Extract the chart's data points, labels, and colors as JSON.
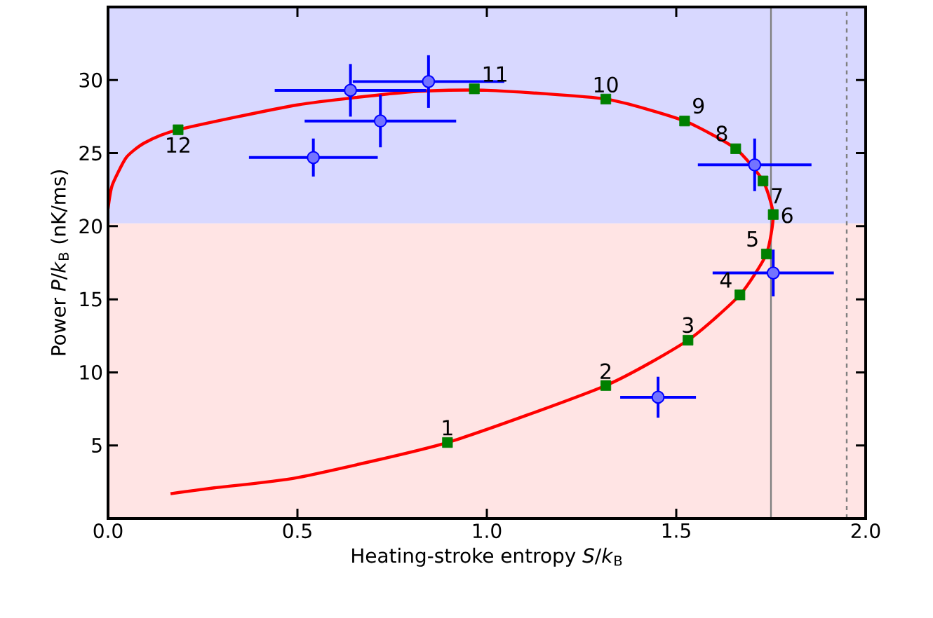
{
  "chart_data": {
    "type": "line",
    "xlabel": "Heating-stroke entropy *S*/*k*$_{B}$",
    "ylabel": "Power *P*/*k*$_{B}$ (nK/ms)",
    "xlim": [
      0,
      2
    ],
    "ylim": [
      0,
      35
    ],
    "xticks": [
      {
        "value": 0,
        "label": "0.0"
      },
      {
        "value": 0.5,
        "label": "0.5"
      },
      {
        "value": 1,
        "label": "1.0"
      },
      {
        "value": 1.5,
        "label": "1.5"
      },
      {
        "value": 2,
        "label": "2.0"
      }
    ],
    "yticks": [
      5,
      10,
      15,
      20,
      25,
      30
    ],
    "bands": [
      {
        "axis": "y",
        "from": 0,
        "to": 20.2,
        "color": "#ffe4e4"
      },
      {
        "axis": "y",
        "from": 20.2,
        "to": 35,
        "color": "#d8d8ff"
      }
    ],
    "ref_lines": [
      {
        "axis": "x",
        "value": 1.75,
        "color": "#808080",
        "line_style": "solid"
      },
      {
        "axis": "x",
        "value": 1.95,
        "color": "#808080",
        "line_style": "dashed"
      }
    ],
    "series": [
      {
        "color": "#ff0000",
        "marker": "none",
        "line_style": "solid",
        "x": [
          0.165,
          0.28,
          0.5,
          0.896,
          1.314,
          1.531,
          1.668,
          1.738,
          1.756,
          1.729,
          1.657,
          1.522,
          1.314,
          1.0,
          0.8,
          0.5,
          0.185,
          0.096,
          0.048,
          0.011,
          0.0
        ],
        "values": [
          1.7,
          2.1,
          2.8,
          5.2,
          9.1,
          12.2,
          15.3,
          18.1,
          20.8,
          23.1,
          25.3,
          27.2,
          28.7,
          29.3,
          29.2,
          28.3,
          26.6,
          25.7,
          24.7,
          22.8,
          21.2
        ]
      },
      {
        "type": "scatter",
        "color": "#008000",
        "marker": "square",
        "x": [
          0.896,
          1.314,
          1.531,
          1.668,
          1.738,
          1.756,
          1.729,
          1.657,
          1.522,
          1.314,
          0.967,
          0.185
        ],
        "values": [
          5.2,
          9.1,
          12.2,
          15.3,
          18.1,
          20.8,
          23.1,
          25.3,
          27.2,
          28.7,
          29.4,
          26.6
        ]
      },
      {
        "type": "scatter",
        "color": "#0000ff",
        "marker": "circle",
        "x": [
          0.542,
          0.64,
          0.719,
          0.846,
          1.707,
          1.756,
          1.452
        ],
        "values": [
          24.7,
          29.3,
          27.2,
          29.9,
          24.2,
          16.8,
          8.3
        ],
        "errors": [
          1.3,
          1.8,
          1.8,
          1.8,
          1.8,
          1.6,
          1.4
        ],
        "xerrors": [
          0.17,
          0.2,
          0.2,
          0.2,
          0.15,
          0.16,
          0.1
        ]
      }
    ],
    "annotations": [
      {
        "text": "1",
        "x": 0.896,
        "y": 5.2
      },
      {
        "text": "2",
        "x": 1.314,
        "y": 9.06
      },
      {
        "text": "3",
        "x": 1.531,
        "y": 12.2
      },
      {
        "text": "4",
        "x": 1.668,
        "y": 15.3
      },
      {
        "text": "5",
        "x": 1.738,
        "y": 18.1
      },
      {
        "text": "6",
        "x": 1.756,
        "y": 20.75
      },
      {
        "text": "7",
        "x": 1.729,
        "y": 23.1
      },
      {
        "text": "8",
        "x": 1.657,
        "y": 25.3
      },
      {
        "text": "9",
        "x": 1.522,
        "y": 27.2
      },
      {
        "text": "10",
        "x": 1.314,
        "y": 28.65
      },
      {
        "text": "11",
        "x": 0.967,
        "y": 29.4
      },
      {
        "text": "12",
        "x": 0.185,
        "y": 26.6
      }
    ]
  }
}
